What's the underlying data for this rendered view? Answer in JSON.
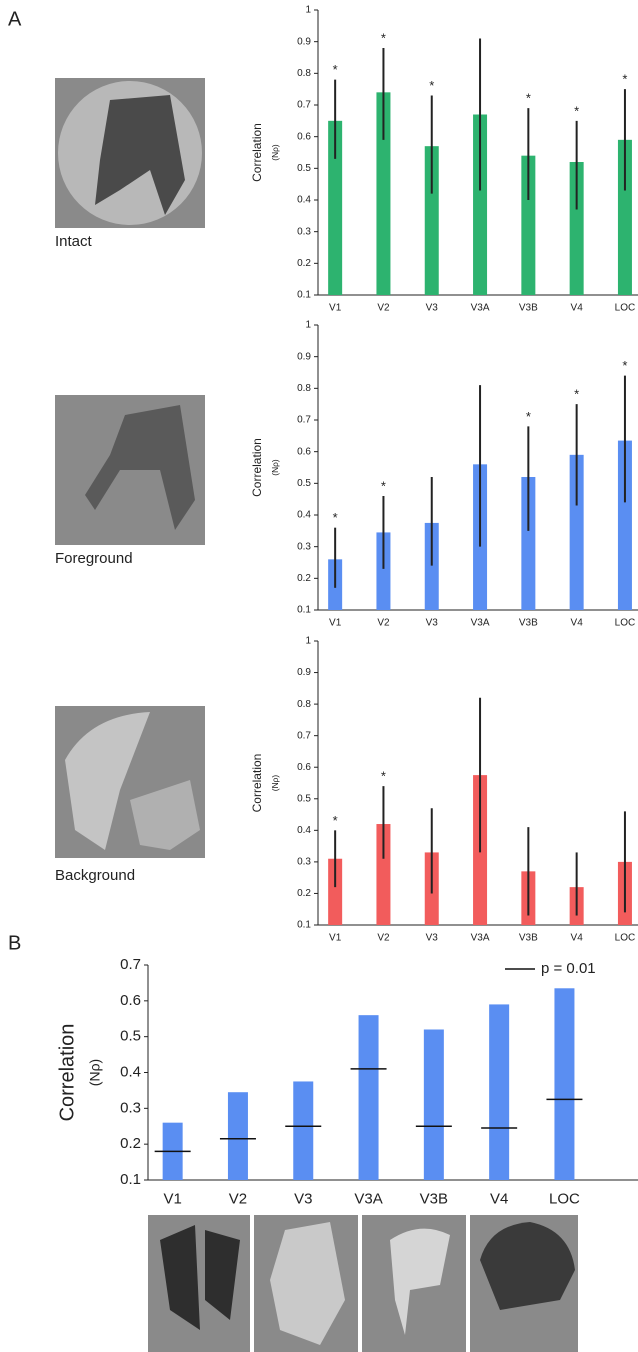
{
  "chart_data": [
    {
      "type": "bar",
      "panel_label": "A",
      "image_label": "Intact",
      "ylabel": "Correlation",
      "ylabel_sub": "(Nρ)",
      "categories": [
        "V1",
        "V2",
        "V3",
        "V3A",
        "V3B",
        "V4",
        "LOC"
      ],
      "values": [
        0.65,
        0.74,
        0.57,
        0.67,
        0.54,
        0.52,
        0.59
      ],
      "error_low": [
        0.53,
        0.59,
        0.42,
        0.43,
        0.4,
        0.37,
        0.43
      ],
      "error_high": [
        0.78,
        0.88,
        0.73,
        0.91,
        0.69,
        0.65,
        0.75
      ],
      "significance": [
        "*",
        "*",
        "*",
        null,
        "*",
        "*",
        "*"
      ],
      "color": "#2db36f",
      "ylim": [
        0.1,
        1
      ],
      "yticks": [
        0.1,
        0.2,
        0.3,
        0.4,
        0.5,
        0.6,
        0.7,
        0.8,
        0.9,
        1
      ]
    },
    {
      "type": "bar",
      "image_label": "Foreground",
      "ylabel": "Correlation",
      "ylabel_sub": "(Nρ)",
      "categories": [
        "V1",
        "V2",
        "V3",
        "V3A",
        "V3B",
        "V4",
        "LOC"
      ],
      "values": [
        0.26,
        0.345,
        0.375,
        0.56,
        0.52,
        0.59,
        0.635
      ],
      "error_low": [
        0.17,
        0.23,
        0.24,
        0.3,
        0.35,
        0.43,
        0.44
      ],
      "error_high": [
        0.36,
        0.46,
        0.52,
        0.81,
        0.68,
        0.75,
        0.84
      ],
      "significance": [
        "*",
        "*",
        null,
        null,
        "*",
        "*",
        "*"
      ],
      "color": "#5a8ef2",
      "ylim": [
        0.1,
        1
      ],
      "yticks": [
        0.1,
        0.2,
        0.3,
        0.4,
        0.5,
        0.6,
        0.7,
        0.8,
        0.9,
        1
      ]
    },
    {
      "type": "bar",
      "image_label": "Background",
      "ylabel": "Correlation",
      "ylabel_sub": "(Nρ)",
      "categories": [
        "V1",
        "V2",
        "V3",
        "V3A",
        "V3B",
        "V4",
        "LOC"
      ],
      "values": [
        0.31,
        0.42,
        0.33,
        0.575,
        0.27,
        0.22,
        0.3
      ],
      "error_low": [
        0.22,
        0.31,
        0.2,
        0.33,
        0.13,
        0.13,
        0.14
      ],
      "error_high": [
        0.4,
        0.54,
        0.47,
        0.82,
        0.41,
        0.33,
        0.46
      ],
      "significance": [
        "*",
        "*",
        null,
        null,
        null,
        null,
        null
      ],
      "color": "#f25c5c",
      "ylim": [
        0.1,
        1
      ],
      "yticks": [
        0.1,
        0.2,
        0.3,
        0.4,
        0.5,
        0.6,
        0.7,
        0.8,
        0.9,
        1
      ]
    },
    {
      "type": "bar",
      "panel_label": "B",
      "ylabel": "Correlation",
      "ylabel_sub": "(Nρ)",
      "categories": [
        "V1",
        "V2",
        "V3",
        "V3A",
        "V3B",
        "V4",
        "LOC"
      ],
      "values": [
        0.26,
        0.345,
        0.375,
        0.56,
        0.52,
        0.59,
        0.635
      ],
      "threshold": [
        0.18,
        0.215,
        0.25,
        0.41,
        0.25,
        0.245,
        0.325
      ],
      "threshold_label": "p = 0.01",
      "color": "#5a8ef2",
      "ylim": [
        0.1,
        0.7
      ],
      "yticks": [
        0.1,
        0.2,
        0.3,
        0.4,
        0.5,
        0.6,
        0.7
      ]
    }
  ]
}
